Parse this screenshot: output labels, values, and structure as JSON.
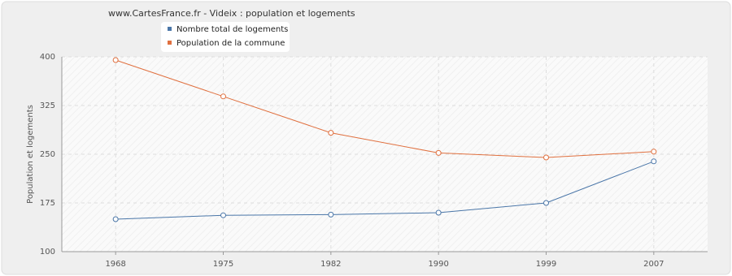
{
  "chart_data": {
    "type": "line",
    "title": "www.CartesFrance.fr - Videix : population et logements",
    "y_label": "Population et logements",
    "categories": [
      "1968",
      "1975",
      "1982",
      "1990",
      "1999",
      "2007"
    ],
    "series": [
      {
        "name": "Nombre total de logements",
        "color": "#4a76a8",
        "values": [
          150,
          156,
          157,
          160,
          175,
          239
        ]
      },
      {
        "name": "Population de la commune",
        "color": "#e0703f",
        "values": [
          395,
          339,
          283,
          252,
          245,
          254
        ]
      }
    ],
    "ylim": [
      100,
      400
    ],
    "yticks": [
      100,
      175,
      250,
      325,
      400
    ],
    "grid": true
  }
}
